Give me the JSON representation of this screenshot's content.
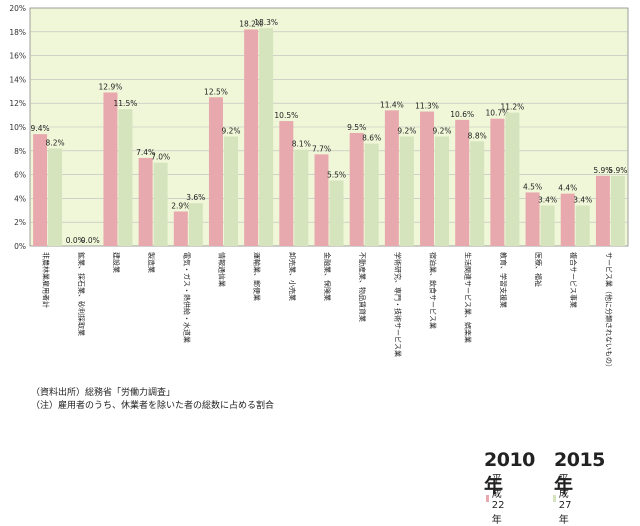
{
  "chart_data": {
    "type": "bar",
    "categories": [
      "非農林業雇用者計",
      "鉱業、採石業、砂利採取業",
      "建設業",
      "製造業",
      "電気・ガス・熱供給・水道業",
      "情報通信業",
      "運輸業、郵便業",
      "卸売業、小売業",
      "金融業、保険業",
      "不動産業、物品賃貸業",
      "学術研究、専門・技術サービス業",
      "宿泊業、飲食サービス業",
      "生活関連サービス業、娯楽業",
      "教育、学習支援業",
      "医療、福祉",
      "複合サービス事業",
      "サービス業（他に分類されないもの）"
    ],
    "series": [
      {
        "name": "平成22年",
        "year": "2010年",
        "color": "#e8a9ae",
        "values": [
          9.4,
          0.0,
          12.9,
          7.4,
          2.9,
          12.5,
          18.2,
          10.5,
          7.7,
          9.5,
          11.4,
          11.3,
          10.6,
          10.7,
          4.5,
          4.4,
          5.9
        ]
      },
      {
        "name": "平成27年",
        "year": "2015年",
        "color": "#d5e4bd",
        "values": [
          8.2,
          0.0,
          11.5,
          7.0,
          3.6,
          9.2,
          18.3,
          8.1,
          5.5,
          8.6,
          9.2,
          9.2,
          8.8,
          11.2,
          3.4,
          3.4,
          5.9
        ]
      }
    ],
    "ylim": [
      0,
      20
    ],
    "yticks": [
      "0%",
      "2%",
      "4%",
      "6%",
      "8%",
      "10%",
      "12%",
      "14%",
      "16%",
      "18%",
      "20%"
    ],
    "grid": true,
    "legend_position": "top-right",
    "plot_background": "#f0f7d8"
  },
  "notes": {
    "source": "（資料出所）総務省「労働力調査」",
    "note": "（注）雇用者のうち、休業者を除いた者の総数に占める割合"
  }
}
